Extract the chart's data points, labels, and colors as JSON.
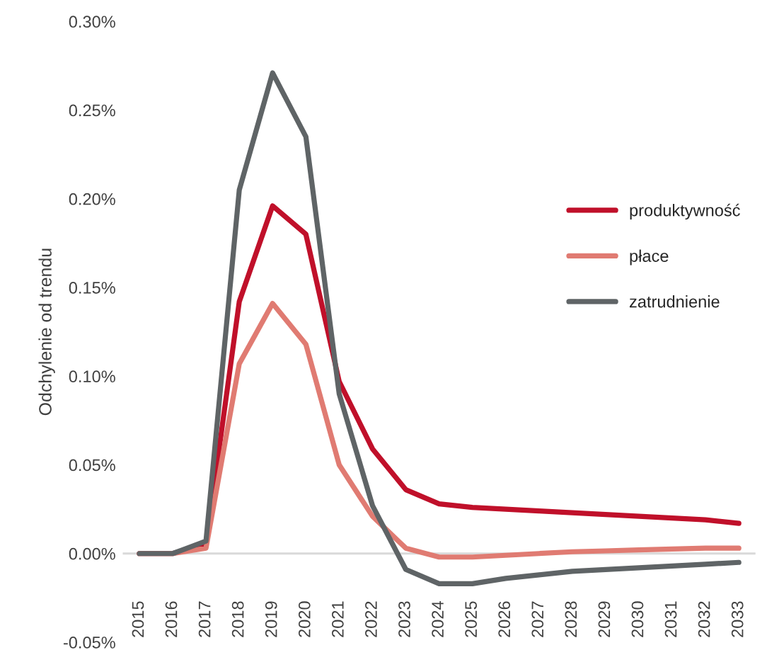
{
  "chart_data": {
    "type": "line",
    "ylabel": "Odchylenie od trendu",
    "categories": [
      "2015",
      "2016",
      "2017",
      "2018",
      "2019",
      "2020",
      "2021",
      "2022",
      "2023",
      "2024",
      "2025",
      "2026",
      "2027",
      "2028",
      "2029",
      "2030",
      "2031",
      "2032",
      "2033"
    ],
    "series": [
      {
        "name": "produktywność",
        "color": "#c0102a",
        "values": [
          0,
          0,
          0.005,
          0.142,
          0.196,
          0.18,
          0.097,
          0.059,
          0.036,
          0.028,
          0.026,
          0.025,
          0.024,
          0.023,
          0.022,
          0.021,
          0.02,
          0.019,
          0.017
        ]
      },
      {
        "name": "płace",
        "color": "#e07b72",
        "values": [
          0,
          0,
          0.003,
          0.107,
          0.141,
          0.118,
          0.05,
          0.021,
          0.003,
          -0.002,
          -0.002,
          -0.001,
          0,
          0.001,
          0.0015,
          0.002,
          0.0025,
          0.003,
          0.003
        ]
      },
      {
        "name": "zatrudnienie",
        "color": "#5f6466",
        "values": [
          0,
          0,
          0.007,
          0.205,
          0.271,
          0.235,
          0.09,
          0.027,
          -0.009,
          -0.017,
          -0.017,
          -0.014,
          -0.012,
          -0.01,
          -0.009,
          -0.008,
          -0.007,
          -0.006,
          -0.005
        ]
      }
    ],
    "ylim": [
      -0.05,
      0.3
    ],
    "yticks": [
      {
        "value": -0.05,
        "label": "-0.05%"
      },
      {
        "value": 0,
        "label": "0.00%"
      },
      {
        "value": 0.05,
        "label": "0.05%"
      },
      {
        "value": 0.1,
        "label": "0.10%"
      },
      {
        "value": 0.15,
        "label": "0.15%"
      },
      {
        "value": 0.2,
        "label": "0.20%"
      },
      {
        "value": 0.25,
        "label": "0.25%"
      },
      {
        "value": 0.3,
        "label": "0.30%"
      }
    ],
    "ref_lines": [
      {
        "axis": "y",
        "value": 0,
        "color": "#d9d9d9"
      }
    ],
    "grid": false,
    "legend": "right",
    "marker": "none",
    "line_style": "solid"
  }
}
